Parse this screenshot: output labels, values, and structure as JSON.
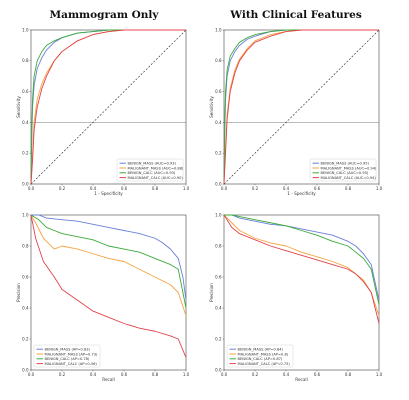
{
  "column_titles": [
    "Mammogram Only",
    "With Clinical Features"
  ],
  "colors": {
    "benign_mass": "#6b7fd8",
    "malignant_mass": "#f5a442",
    "benign_calc": "#3aab3a",
    "malignant_calc": "#e0444e",
    "diagonal": "#222222",
    "hline": "#555555"
  },
  "chart_data": [
    {
      "type": "line",
      "title": "Mammogram Only",
      "xlabel": "1 - Specificity",
      "ylabel": "Sensitivity",
      "xlim": [
        0,
        1
      ],
      "ylim": [
        0,
        1
      ],
      "xticks": [
        "0.0",
        "0.2",
        "0.4",
        "0.6",
        "0.8",
        "1.0"
      ],
      "yticks": [
        "0.0",
        "0.2",
        "0.4",
        "0.6",
        "0.8",
        "1.0"
      ],
      "grid": false,
      "legend_position": "lower-right",
      "reference_diagonal": true,
      "reference_hline": 0.4,
      "series": [
        {
          "name": "BENIGN_MASS (AUC=0.93)",
          "color_key": "benign_mass",
          "x": [
            0,
            0.005,
            0.01,
            0.02,
            0.04,
            0.07,
            0.1,
            0.15,
            0.2,
            0.3,
            0.4,
            0.5,
            0.6,
            0.8,
            1.0
          ],
          "y": [
            0,
            0.3,
            0.5,
            0.64,
            0.75,
            0.82,
            0.87,
            0.92,
            0.95,
            0.98,
            0.99,
            1.0,
            1.0,
            1.0,
            1.0
          ]
        },
        {
          "name": "MALIGNANT_MASS (AUC=0.88)",
          "color_key": "malignant_mass",
          "x": [
            0,
            0.01,
            0.02,
            0.04,
            0.07,
            0.1,
            0.15,
            0.2,
            0.3,
            0.4,
            0.5,
            0.6,
            0.8,
            1.0
          ],
          "y": [
            0,
            0.2,
            0.4,
            0.55,
            0.65,
            0.72,
            0.8,
            0.86,
            0.93,
            0.97,
            0.99,
            1.0,
            1.0,
            1.0
          ]
        },
        {
          "name": "BENIGN_CALC (AUC=0.93)",
          "color_key": "benign_calc",
          "x": [
            0,
            0.005,
            0.01,
            0.02,
            0.04,
            0.07,
            0.1,
            0.15,
            0.2,
            0.3,
            0.4,
            0.5,
            0.6,
            0.8,
            1.0
          ],
          "y": [
            0,
            0.35,
            0.55,
            0.7,
            0.8,
            0.86,
            0.9,
            0.93,
            0.95,
            0.98,
            0.99,
            1.0,
            1.0,
            1.0,
            1.0
          ]
        },
        {
          "name": "MALIGNANT_CALC (AUC=0.90)",
          "color_key": "malignant_calc",
          "x": [
            0,
            0.01,
            0.02,
            0.04,
            0.07,
            0.1,
            0.15,
            0.2,
            0.3,
            0.4,
            0.5,
            0.6,
            0.8,
            1.0
          ],
          "y": [
            0,
            0.15,
            0.35,
            0.5,
            0.62,
            0.7,
            0.8,
            0.86,
            0.93,
            0.97,
            0.99,
            1.0,
            1.0,
            1.0
          ]
        }
      ]
    },
    {
      "type": "line",
      "title": "With Clinical Features",
      "xlabel": "1 - Specificity",
      "ylabel": "Sensitivity",
      "xlim": [
        0,
        1
      ],
      "ylim": [
        0,
        1
      ],
      "xticks": [
        "0.0",
        "0.2",
        "0.4",
        "0.6",
        "0.8",
        "1.0"
      ],
      "yticks": [
        "0.0",
        "0.2",
        "0.4",
        "0.6",
        "0.8",
        "1.0"
      ],
      "grid": false,
      "legend_position": "lower-right",
      "reference_diagonal": true,
      "reference_hline": 0.4,
      "series": [
        {
          "name": "BENIGN_MASS (AUC=0.95)",
          "color_key": "benign_mass",
          "x": [
            0,
            0.005,
            0.01,
            0.02,
            0.04,
            0.07,
            0.1,
            0.15,
            0.2,
            0.3,
            0.4,
            0.5,
            0.6,
            0.8,
            1.0
          ],
          "y": [
            0,
            0.35,
            0.55,
            0.7,
            0.8,
            0.86,
            0.9,
            0.94,
            0.96,
            0.99,
            1.0,
            1.0,
            1.0,
            1.0,
            1.0
          ]
        },
        {
          "name": "MALIGNANT_MASS (AUC=0.94)",
          "color_key": "malignant_mass",
          "x": [
            0,
            0.01,
            0.02,
            0.04,
            0.07,
            0.1,
            0.15,
            0.2,
            0.3,
            0.4,
            0.5,
            0.6,
            0.8,
            1.0
          ],
          "y": [
            0,
            0.25,
            0.45,
            0.62,
            0.74,
            0.81,
            0.88,
            0.93,
            0.97,
            0.99,
            1.0,
            1.0,
            1.0,
            1.0
          ]
        },
        {
          "name": "BENIGN_CALC (AUC=0.95)",
          "color_key": "benign_calc",
          "x": [
            0,
            0.005,
            0.01,
            0.02,
            0.04,
            0.07,
            0.1,
            0.15,
            0.2,
            0.3,
            0.4,
            0.5,
            0.6,
            0.8,
            1.0
          ],
          "y": [
            0,
            0.4,
            0.6,
            0.74,
            0.83,
            0.88,
            0.92,
            0.95,
            0.97,
            0.99,
            1.0,
            1.0,
            1.0,
            1.0,
            1.0
          ]
        },
        {
          "name": "MALIGNANT_CALC (AUC=0.94)",
          "color_key": "malignant_calc",
          "x": [
            0,
            0.01,
            0.02,
            0.04,
            0.07,
            0.1,
            0.15,
            0.2,
            0.3,
            0.4,
            0.5,
            0.6,
            0.8,
            1.0
          ],
          "y": [
            0,
            0.2,
            0.42,
            0.6,
            0.72,
            0.8,
            0.87,
            0.92,
            0.96,
            0.99,
            1.0,
            1.0,
            1.0,
            1.0
          ]
        }
      ]
    },
    {
      "type": "line",
      "title": "",
      "xlabel": "Recall",
      "ylabel": "Precision",
      "xlim": [
        0,
        1
      ],
      "ylim": [
        0,
        1
      ],
      "xticks": [
        "0.0",
        "0.2",
        "0.4",
        "0.6",
        "0.8",
        "1.0"
      ],
      "yticks": [
        "0.0",
        "0.2",
        "0.4",
        "0.6",
        "0.8",
        "1.0"
      ],
      "grid": false,
      "legend_position": "lower-left",
      "reference_diagonal": false,
      "series": [
        {
          "name": "BENIGN_MASS (AP=0.83)",
          "color_key": "benign_mass",
          "x": [
            0,
            0.05,
            0.1,
            0.2,
            0.3,
            0.4,
            0.5,
            0.6,
            0.7,
            0.8,
            0.85,
            0.9,
            0.95,
            0.98,
            1.0
          ],
          "y": [
            1.0,
            1.0,
            0.98,
            0.97,
            0.96,
            0.94,
            0.92,
            0.9,
            0.88,
            0.85,
            0.82,
            0.78,
            0.72,
            0.6,
            0.45
          ]
        },
        {
          "name": "MALIGNANT_MASS (AP=0.73)",
          "color_key": "malignant_mass",
          "x": [
            0,
            0.03,
            0.08,
            0.15,
            0.2,
            0.3,
            0.4,
            0.5,
            0.6,
            0.7,
            0.8,
            0.9,
            0.95,
            1.0
          ],
          "y": [
            1.0,
            0.95,
            0.85,
            0.78,
            0.8,
            0.78,
            0.75,
            0.72,
            0.7,
            0.65,
            0.6,
            0.55,
            0.5,
            0.35
          ]
        },
        {
          "name": "BENIGN_CALC (AP=0.78)",
          "color_key": "benign_calc",
          "x": [
            0,
            0.05,
            0.1,
            0.15,
            0.2,
            0.3,
            0.4,
            0.5,
            0.6,
            0.7,
            0.8,
            0.9,
            0.95,
            1.0
          ],
          "y": [
            1.0,
            0.97,
            0.92,
            0.9,
            0.88,
            0.86,
            0.84,
            0.8,
            0.78,
            0.76,
            0.72,
            0.68,
            0.65,
            0.4
          ]
        },
        {
          "name": "MALIGNANT_CALC (AP=0.56)",
          "color_key": "malignant_calc",
          "x": [
            0,
            0.03,
            0.08,
            0.15,
            0.2,
            0.3,
            0.4,
            0.5,
            0.6,
            0.7,
            0.8,
            0.9,
            0.95,
            1.0
          ],
          "y": [
            1.0,
            0.85,
            0.7,
            0.6,
            0.52,
            0.45,
            0.38,
            0.34,
            0.3,
            0.27,
            0.25,
            0.22,
            0.2,
            0.08
          ]
        }
      ]
    },
    {
      "type": "line",
      "title": "",
      "xlabel": "Recall",
      "ylabel": "Precision",
      "xlim": [
        0,
        1
      ],
      "ylim": [
        0,
        1
      ],
      "xticks": [
        "0.0",
        "0.2",
        "0.4",
        "0.6",
        "0.8",
        "1.0"
      ],
      "yticks": [
        "0.0",
        "0.2",
        "0.4",
        "0.6",
        "0.8",
        "1.0"
      ],
      "grid": false,
      "legend_position": "lower-left",
      "reference_diagonal": false,
      "series": [
        {
          "name": "BENIGN_MASS (AP=0.84)",
          "color_key": "benign_mass",
          "x": [
            0,
            0.05,
            0.1,
            0.2,
            0.3,
            0.4,
            0.5,
            0.6,
            0.7,
            0.8,
            0.85,
            0.9,
            0.95,
            1.0
          ],
          "y": [
            1.0,
            1.0,
            0.98,
            0.96,
            0.94,
            0.93,
            0.91,
            0.89,
            0.87,
            0.83,
            0.8,
            0.75,
            0.68,
            0.45
          ]
        },
        {
          "name": "MALIGNANT_MASS (AP=0.8)",
          "color_key": "malignant_mass",
          "x": [
            0,
            0.05,
            0.1,
            0.2,
            0.3,
            0.4,
            0.5,
            0.6,
            0.7,
            0.8,
            0.85,
            0.9,
            0.95,
            1.0
          ],
          "y": [
            1.0,
            0.95,
            0.9,
            0.85,
            0.82,
            0.8,
            0.76,
            0.73,
            0.7,
            0.66,
            0.62,
            0.58,
            0.5,
            0.35
          ]
        },
        {
          "name": "BENIGN_CALC (AP=0.87)",
          "color_key": "benign_calc",
          "x": [
            0,
            0.05,
            0.1,
            0.2,
            0.3,
            0.4,
            0.5,
            0.6,
            0.7,
            0.8,
            0.85,
            0.9,
            0.95,
            1.0
          ],
          "y": [
            1.0,
            1.0,
            0.99,
            0.97,
            0.95,
            0.93,
            0.9,
            0.87,
            0.83,
            0.8,
            0.76,
            0.72,
            0.65,
            0.42
          ]
        },
        {
          "name": "MALIGNANT_CALC (AP=0.75)",
          "color_key": "malignant_calc",
          "x": [
            0,
            0.05,
            0.1,
            0.2,
            0.3,
            0.4,
            0.5,
            0.6,
            0.7,
            0.8,
            0.85,
            0.9,
            0.95,
            1.0
          ],
          "y": [
            1.0,
            0.92,
            0.88,
            0.84,
            0.8,
            0.77,
            0.74,
            0.71,
            0.68,
            0.65,
            0.62,
            0.57,
            0.5,
            0.3
          ]
        }
      ]
    }
  ]
}
